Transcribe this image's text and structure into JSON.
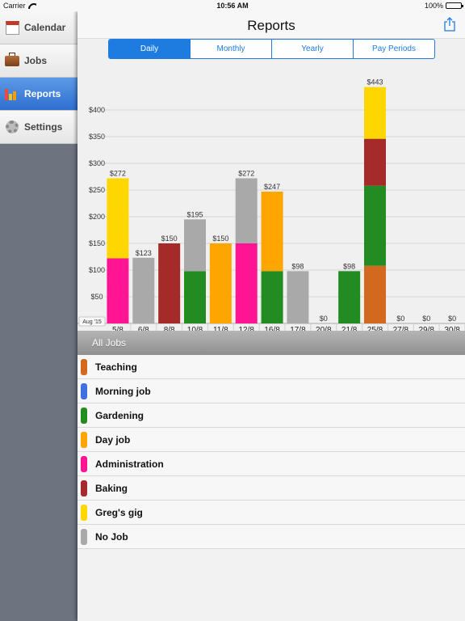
{
  "status": {
    "carrier": "Carrier",
    "time": "10:56 AM",
    "battery": "100%"
  },
  "sidebar": {
    "items": [
      {
        "label": "Calendar",
        "icon": "calendar-icon",
        "active": false
      },
      {
        "label": "Jobs",
        "icon": "briefcase-icon",
        "active": false
      },
      {
        "label": "Reports",
        "icon": "bar-chart-icon",
        "active": true
      },
      {
        "label": "Settings",
        "icon": "gear-icon",
        "active": false
      }
    ]
  },
  "header": {
    "title": "Reports"
  },
  "segments": [
    {
      "label": "Daily",
      "active": true
    },
    {
      "label": "Monthly",
      "active": false
    },
    {
      "label": "Yearly",
      "active": false
    },
    {
      "label": "Pay Periods",
      "active": false
    }
  ],
  "chart_data": {
    "type": "bar",
    "stacked": true,
    "period_label": "Aug '15",
    "ylim": [
      0,
      450
    ],
    "yticks": [
      50,
      100,
      150,
      200,
      250,
      300,
      350,
      400
    ],
    "ytick_labels": [
      "$50",
      "$100",
      "$150",
      "$200",
      "$250",
      "$300",
      "$350",
      "$400"
    ],
    "grid": true,
    "categories": [
      "5/8",
      "6/8",
      "8/8",
      "10/8",
      "11/8",
      "12/8",
      "16/8",
      "17/8",
      "20/8",
      "21/8",
      "25/8",
      "27/8",
      "29/8",
      "30/8"
    ],
    "totals": [
      "$272",
      "$123",
      "$150",
      "$195",
      "$150",
      "$272",
      "$247",
      "$98",
      "$0",
      "$98",
      "$443",
      "$0",
      "$0",
      "$0"
    ],
    "series": [
      {
        "name": "Teaching",
        "color": "#d2691e",
        "values": [
          0,
          0,
          0,
          0,
          0,
          0,
          0,
          0,
          0,
          0,
          108,
          0,
          0,
          0
        ]
      },
      {
        "name": "Morning job",
        "color": "#3f6fe0",
        "values": [
          0,
          0,
          0,
          0,
          0,
          0,
          0,
          0,
          0,
          0,
          0,
          0,
          0,
          0
        ]
      },
      {
        "name": "Gardening",
        "color": "#228b22",
        "values": [
          0,
          0,
          0,
          98,
          0,
          0,
          98,
          0,
          0,
          98,
          150,
          0,
          0,
          0
        ]
      },
      {
        "name": "Day job",
        "color": "#ffa500",
        "values": [
          0,
          0,
          0,
          0,
          150,
          0,
          149,
          0,
          0,
          0,
          0,
          0,
          0,
          0
        ]
      },
      {
        "name": "Administration",
        "color": "#ff1493",
        "values": [
          122,
          0,
          0,
          0,
          0,
          150,
          0,
          0,
          0,
          0,
          0,
          0,
          0,
          0
        ]
      },
      {
        "name": "Baking",
        "color": "#a52a2a",
        "values": [
          0,
          0,
          150,
          0,
          0,
          0,
          0,
          0,
          0,
          0,
          88,
          0,
          0,
          0
        ]
      },
      {
        "name": "Greg's gig",
        "color": "#ffd700",
        "values": [
          150,
          0,
          0,
          0,
          0,
          0,
          0,
          0,
          0,
          0,
          97,
          0,
          0,
          0
        ]
      },
      {
        "name": "No Job",
        "color": "#a9a9a9",
        "values": [
          0,
          123,
          0,
          97,
          0,
          122,
          0,
          98,
          0,
          0,
          0,
          0,
          0,
          0
        ]
      }
    ]
  },
  "legend": {
    "header": "All Jobs",
    "items": [
      {
        "label": "Teaching",
        "color": "#d2691e"
      },
      {
        "label": "Morning job",
        "color": "#3f6fe0"
      },
      {
        "label": "Gardening",
        "color": "#228b22"
      },
      {
        "label": "Day job",
        "color": "#ffa500"
      },
      {
        "label": "Administration",
        "color": "#ff1493"
      },
      {
        "label": "Baking",
        "color": "#a52a2a"
      },
      {
        "label": "Greg's gig",
        "color": "#ffd700"
      },
      {
        "label": "No Job",
        "color": "#a9a9a9"
      }
    ]
  }
}
